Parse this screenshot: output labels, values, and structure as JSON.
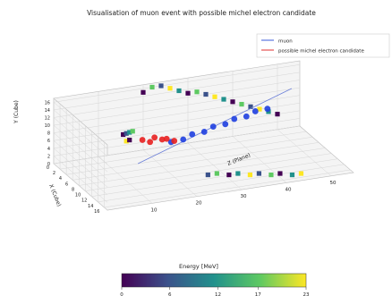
{
  "chart_data": {
    "type": "scatter3d",
    "title": "Visualisation of muon event with possible michel electron candidate",
    "xlabel": "Z (Plane)",
    "ylabel": "X (Cube)",
    "zlabel": "Y (Cube)",
    "x_ticks": [
      "10",
      "20",
      "30",
      "40",
      "50"
    ],
    "y_ticks": [
      "0",
      "2",
      "4",
      "6",
      "8",
      "10",
      "12",
      "14",
      "16"
    ],
    "z_ticks": [
      "0",
      "2",
      "4",
      "6",
      "8",
      "10",
      "12",
      "14",
      "16"
    ],
    "xlim": [
      0,
      55
    ],
    "ylim": [
      0,
      17
    ],
    "zlim": [
      0,
      17
    ],
    "grid": true,
    "legend_position": "top-right",
    "legend": [
      {
        "name": "muon",
        "color": "#3b5bd9"
      },
      {
        "name": "possible michel electron candidate",
        "color": "#e03030"
      }
    ],
    "series": [
      {
        "name": "muon",
        "color": "#1f3fe0",
        "points": [
          {
            "x": 22,
            "y": 6,
            "z": 6
          },
          {
            "x": 24,
            "y": 7,
            "z": 7
          },
          {
            "x": 26,
            "y": 7,
            "z": 8
          },
          {
            "x": 28,
            "y": 8,
            "z": 9
          },
          {
            "x": 30,
            "y": 8,
            "z": 10
          },
          {
            "x": 32,
            "y": 9,
            "z": 11
          },
          {
            "x": 34,
            "y": 9,
            "z": 12
          },
          {
            "x": 36,
            "y": 10,
            "z": 13
          },
          {
            "x": 38,
            "y": 10,
            "z": 14
          },
          {
            "x": 40,
            "y": 11,
            "z": 15
          }
        ]
      },
      {
        "name": "possible michel electron candidate",
        "color": "#e82020",
        "points": [
          {
            "x": 17,
            "y": 4,
            "z": 6
          },
          {
            "x": 18,
            "y": 5,
            "z": 6
          },
          {
            "x": 19,
            "y": 5,
            "z": 7
          },
          {
            "x": 20,
            "y": 6,
            "z": 7
          },
          {
            "x": 21,
            "y": 6,
            "z": 7
          },
          {
            "x": 22,
            "y": 7,
            "z": 7
          }
        ]
      }
    ],
    "colorbar": {
      "label": "Energy [MeV]",
      "ticks": [
        "0",
        "6",
        "12",
        "17",
        "23"
      ],
      "range": [
        0,
        23
      ],
      "colors": [
        "#440154",
        "#3b528b",
        "#21918c",
        "#5ec962",
        "#fde725"
      ]
    }
  }
}
